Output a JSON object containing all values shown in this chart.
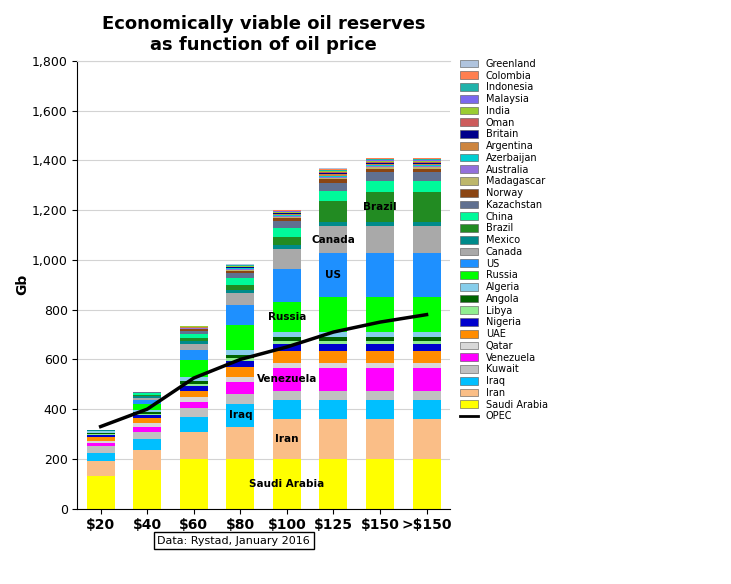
{
  "title": "Economically viable oil reserves\nas function of oil price",
  "ylabel": "Gb",
  "data_note": "Data: Rystad, January 2016",
  "categories": [
    "$20",
    "$40",
    "$60",
    "$80",
    "$100",
    "$125",
    "$150",
    ">$150"
  ],
  "opec_line": [
    330,
    400,
    525,
    600,
    650,
    710,
    750,
    780
  ],
  "countries_bottom_to_top": [
    "Saudi Arabia",
    "Iran",
    "Iraq",
    "Kuwait",
    "Venezuela",
    "Qatar",
    "UAE",
    "Nigeria",
    "Libya",
    "Angola",
    "Algeria",
    "Russia",
    "US",
    "Canada",
    "Mexico",
    "Brazil",
    "China",
    "Kazachstan",
    "Norway",
    "Madagascar",
    "Australia",
    "Azerbaijan",
    "Argentina",
    "Britain",
    "Oman",
    "India",
    "Malaysia",
    "Indonesia",
    "Colombia",
    "Greenland"
  ],
  "colors": [
    "#FFFF00",
    "#FABE87",
    "#00BFFF",
    "#C0C0C0",
    "#FF00FF",
    "#D8D8D8",
    "#FF8C00",
    "#0000CD",
    "#90EE90",
    "#006400",
    "#87CEEB",
    "#00FF00",
    "#1E90FF",
    "#A9A9A9",
    "#008B8B",
    "#228B22",
    "#00FA9A",
    "#607090",
    "#8B4513",
    "#BDB76B",
    "#9370DB",
    "#00CED1",
    "#CD853F",
    "#00008B",
    "#CD5C5C",
    "#9ACD32",
    "#7B68EE",
    "#20B2AA",
    "#FF7F50",
    "#B0C4DE"
  ],
  "values": {
    "Saudi Arabia": [
      130,
      155,
      200,
      200,
      200,
      200,
      200,
      200
    ],
    "Iran": [
      60,
      80,
      110,
      130,
      160,
      160,
      160,
      160
    ],
    "Iraq": [
      35,
      45,
      60,
      90,
      75,
      75,
      75,
      75
    ],
    "Kuwait": [
      25,
      30,
      35,
      40,
      40,
      40,
      40,
      40
    ],
    "Venezuela": [
      12,
      18,
      25,
      50,
      90,
      90,
      90,
      90
    ],
    "Qatar": [
      12,
      15,
      18,
      20,
      20,
      20,
      20,
      20
    ],
    "UAE": [
      15,
      20,
      25,
      40,
      50,
      50,
      50,
      50
    ],
    "Nigeria": [
      8,
      12,
      20,
      25,
      25,
      25,
      25,
      25
    ],
    "Libya": [
      4,
      6,
      10,
      12,
      15,
      15,
      15,
      15
    ],
    "Angola": [
      4,
      6,
      10,
      12,
      15,
      15,
      15,
      15
    ],
    "Algeria": [
      6,
      10,
      15,
      18,
      22,
      22,
      22,
      22
    ],
    "Russia": [
      0,
      25,
      70,
      100,
      120,
      140,
      140,
      140
    ],
    "US": [
      0,
      15,
      40,
      80,
      130,
      175,
      175,
      175
    ],
    "Canada": [
      0,
      8,
      25,
      50,
      80,
      110,
      110,
      110
    ],
    "Mexico": [
      4,
      6,
      10,
      14,
      16,
      16,
      16,
      16
    ],
    "Brazil": [
      0,
      4,
      12,
      20,
      35,
      85,
      120,
      120
    ],
    "China": [
      0,
      8,
      18,
      25,
      35,
      40,
      45,
      45
    ],
    "Kazachstan": [
      0,
      4,
      12,
      20,
      28,
      32,
      35,
      35
    ],
    "Norway": [
      0,
      2,
      6,
      10,
      12,
      14,
      14,
      14
    ],
    "Madagascar": [
      0,
      0,
      2,
      3,
      4,
      5,
      5,
      5
    ],
    "Australia": [
      0,
      0,
      2,
      3,
      3,
      4,
      4,
      4
    ],
    "Azerbaijan": [
      0,
      0,
      2,
      4,
      5,
      6,
      6,
      6
    ],
    "Argentina": [
      0,
      0,
      2,
      3,
      4,
      5,
      5,
      5
    ],
    "Britain": [
      0,
      0,
      2,
      2,
      3,
      4,
      4,
      4
    ],
    "Oman": [
      0,
      0,
      1,
      2,
      3,
      4,
      4,
      4
    ],
    "India": [
      0,
      0,
      1,
      2,
      3,
      4,
      4,
      4
    ],
    "Malaysia": [
      0,
      0,
      1,
      2,
      2,
      3,
      3,
      3
    ],
    "Indonesia": [
      0,
      0,
      1,
      2,
      2,
      3,
      3,
      3
    ],
    "Colombia": [
      0,
      0,
      1,
      2,
      2,
      3,
      3,
      3
    ],
    "Greenland": [
      0,
      0,
      0,
      1,
      2,
      3,
      3,
      3
    ]
  },
  "bar_labels": [
    {
      "country": "Saudi Arabia",
      "bar": 4,
      "text": "Saudi Arabia"
    },
    {
      "country": "Iran",
      "bar": 4,
      "text": "Iran"
    },
    {
      "country": "Iraq",
      "bar": 3,
      "text": "Iraq"
    },
    {
      "country": "Venezuela",
      "bar": 4,
      "text": "Venezuela"
    },
    {
      "country": "Russia",
      "bar": 4,
      "text": "Russia"
    },
    {
      "country": "US",
      "bar": 5,
      "text": "US"
    },
    {
      "country": "Canada",
      "bar": 5,
      "text": "Canada"
    },
    {
      "country": "Brazil",
      "bar": 6,
      "text": "Brazil"
    }
  ],
  "ylim": [
    0,
    1800
  ],
  "yticks": [
    0,
    200,
    400,
    600,
    800,
    1000,
    1200,
    1400,
    1600,
    1800
  ],
  "ytick_labels": [
    "0",
    "200",
    "400",
    "600",
    "800",
    "1,000",
    "1,200",
    "1,400",
    "1,600",
    "1,800"
  ]
}
